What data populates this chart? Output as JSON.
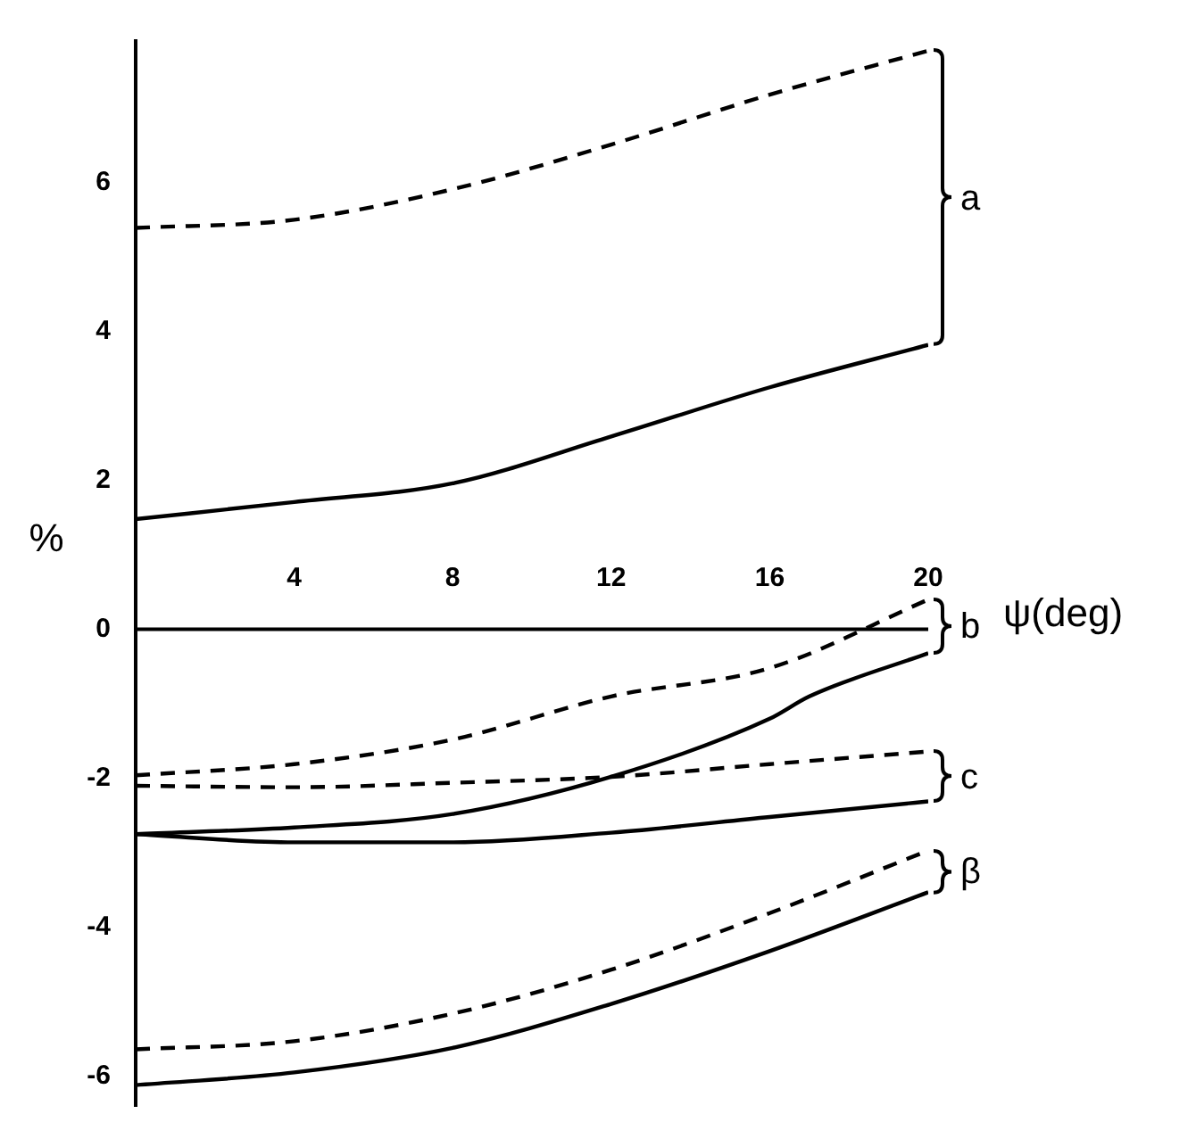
{
  "chart_data": {
    "type": "line",
    "xlabel": "ψ(deg)",
    "ylabel": "%",
    "x": [
      0,
      4,
      8,
      12,
      16,
      20
    ],
    "series": [
      {
        "color": "#000000",
        "line_style": "dashed",
        "values": [
          5.39,
          5.5,
          5.91,
          6.51,
          7.18,
          7.77
        ]
      },
      {
        "color": "#000000",
        "line_style": "solid",
        "values": [
          1.48,
          1.71,
          1.96,
          2.59,
          3.25,
          3.82
        ]
      },
      {
        "color": "#000000",
        "line_style": "dashed",
        "values": [
          -1.96,
          -1.81,
          -1.48,
          -0.9,
          -0.52,
          0.4
        ]
      },
      {
        "color": "#000000",
        "line_style": "solid",
        "x": [
          0,
          4,
          8,
          12,
          16,
          17,
          20
        ],
        "values": [
          -2.75,
          -2.66,
          -2.48,
          -1.98,
          -1.2,
          -0.9,
          -0.32
        ]
      },
      {
        "color": "#000000",
        "line_style": "dashed",
        "values": [
          -2.1,
          -2.12,
          -2.06,
          -1.98,
          -1.81,
          -1.64
        ]
      },
      {
        "color": "#000000",
        "line_style": "solid",
        "values": [
          -2.75,
          -2.86,
          -2.86,
          -2.73,
          -2.52,
          -2.31
        ]
      },
      {
        "color": "#000000",
        "line_style": "dashed",
        "values": [
          -5.64,
          -5.53,
          -5.16,
          -4.57,
          -3.81,
          -2.97
        ]
      },
      {
        "color": "#000000",
        "line_style": "solid",
        "values": [
          -6.12,
          -5.95,
          -5.62,
          -5.03,
          -4.32,
          -3.53
        ]
      }
    ],
    "annotations": [
      "a",
      "b",
      "c",
      "β"
    ],
    "xlim": [
      0,
      20
    ],
    "xticks": [
      4,
      8,
      12,
      16,
      20
    ],
    "ylim": [
      -6.4,
      7.9
    ],
    "yticks": [
      -6,
      -4,
      -2,
      0,
      2,
      4,
      6
    ]
  }
}
